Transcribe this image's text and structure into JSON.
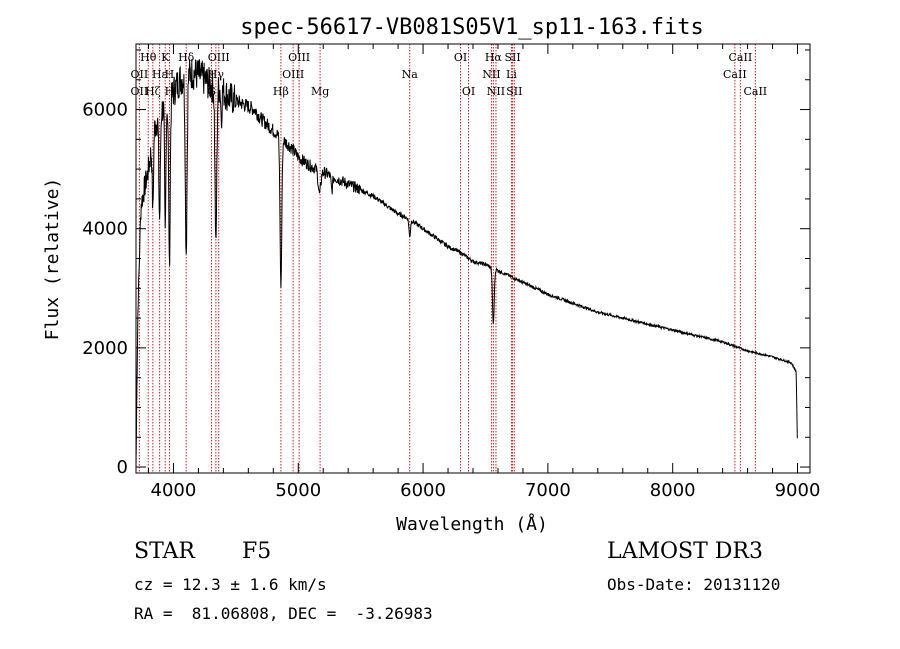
{
  "chart_data": {
    "type": "line",
    "title": "spec-56617-VB081S05V1_sp11-163.fits",
    "xlabel": "Wavelength (Å)",
    "ylabel": "Flux (relative)",
    "xlim": [
      3700,
      9100
    ],
    "ylim": [
      -100,
      7100
    ],
    "x_ticks": [
      4000,
      5000,
      6000,
      7000,
      8000,
      9000
    ],
    "x_tick_labels": [
      "4000",
      "5000",
      "6000",
      "7000",
      "8000",
      "9000"
    ],
    "y_ticks": [
      0,
      2000,
      4000,
      6000
    ],
    "y_tick_labels": [
      "0",
      "2000",
      "4000",
      "6000"
    ],
    "spectrum": {
      "continuum": [
        [
          3700,
          0
        ],
        [
          3715,
          2600
        ],
        [
          3740,
          4400
        ],
        [
          3800,
          5000
        ],
        [
          3850,
          5700
        ],
        [
          3900,
          6000
        ],
        [
          3950,
          6050
        ],
        [
          4000,
          6300
        ],
        [
          4050,
          6500
        ],
        [
          4100,
          6550
        ],
        [
          4150,
          6620
        ],
        [
          4200,
          6580
        ],
        [
          4250,
          6500
        ],
        [
          4300,
          6400
        ],
        [
          4350,
          6380
        ],
        [
          4400,
          6300
        ],
        [
          4450,
          6200
        ],
        [
          4500,
          6150
        ],
        [
          4550,
          6100
        ],
        [
          4600,
          6050
        ],
        [
          4650,
          6000
        ],
        [
          4700,
          5850
        ],
        [
          4750,
          5750
        ],
        [
          4800,
          5650
        ],
        [
          4850,
          5550
        ],
        [
          4900,
          5450
        ],
        [
          4950,
          5350
        ],
        [
          5000,
          5200
        ],
        [
          5100,
          5050
        ],
        [
          5200,
          4950
        ],
        [
          5300,
          4850
        ],
        [
          5400,
          4750
        ],
        [
          5500,
          4650
        ],
        [
          5600,
          4550
        ],
        [
          5700,
          4400
        ],
        [
          5800,
          4250
        ],
        [
          5900,
          4150
        ],
        [
          6000,
          4000
        ],
        [
          6100,
          3850
        ],
        [
          6200,
          3700
        ],
        [
          6300,
          3600
        ],
        [
          6400,
          3450
        ],
        [
          6500,
          3400
        ],
        [
          6600,
          3300
        ],
        [
          6700,
          3200
        ],
        [
          6800,
          3100
        ],
        [
          6900,
          3000
        ],
        [
          7000,
          2900
        ],
        [
          7200,
          2750
        ],
        [
          7400,
          2600
        ],
        [
          7600,
          2500
        ],
        [
          7800,
          2400
        ],
        [
          8000,
          2300
        ],
        [
          8200,
          2200
        ],
        [
          8400,
          2100
        ],
        [
          8600,
          1950
        ],
        [
          8800,
          1850
        ],
        [
          8950,
          1750
        ],
        [
          8990,
          1600
        ],
        [
          9000,
          200
        ]
      ],
      "absorption_lines": [
        [
          3835,
          0.22,
          5
        ],
        [
          3889,
          0.3,
          6
        ],
        [
          3934,
          0.35,
          5
        ],
        [
          3968,
          0.45,
          6
        ],
        [
          4102,
          0.45,
          7
        ],
        [
          4340,
          0.42,
          7
        ],
        [
          4384,
          0.08,
          4
        ],
        [
          4861,
          0.45,
          7
        ],
        [
          5170,
          0.08,
          10
        ],
        [
          5269,
          0.05,
          6
        ],
        [
          5893,
          0.07,
          6
        ],
        [
          6563,
          0.28,
          7
        ]
      ]
    },
    "line_ids": [
      {
        "label": "Hθ",
        "wavelength": 3798,
        "row": 1
      },
      {
        "label": "OII",
        "wavelength": 3727,
        "row": 2
      },
      {
        "label": "OII",
        "wavelength": 3727,
        "row": 3
      },
      {
        "label": "K",
        "wavelength": 3934,
        "row": 1
      },
      {
        "label": "Hε",
        "wavelength": 3889,
        "row": 2
      },
      {
        "label": "Hζ",
        "wavelength": 3835,
        "row": 3
      },
      {
        "label": "Hδ",
        "wavelength": 4102,
        "row": 1
      },
      {
        "label": "H",
        "wavelength": 3968,
        "row": 2
      },
      {
        "label": "H",
        "wavelength": 3968,
        "row": 3
      },
      {
        "label": "OIII",
        "wavelength": 4363,
        "row": 1
      },
      {
        "label": "Hγ",
        "wavelength": 4340,
        "row": 2
      },
      {
        "label": "G",
        "wavelength": 4305,
        "row": 3
      },
      {
        "label": "OIII",
        "wavelength": 5007,
        "row": 1
      },
      {
        "label": "OIII",
        "wavelength": 4959,
        "row": 2
      },
      {
        "label": "Hβ",
        "wavelength": 4861,
        "row": 3
      },
      {
        "label": "Mg",
        "wavelength": 5175,
        "row": 3
      },
      {
        "label": "Na",
        "wavelength": 5893,
        "row": 2
      },
      {
        "label": "OI",
        "wavelength": 6300,
        "row": 1
      },
      {
        "label": "OI",
        "wavelength": 6364,
        "row": 3
      },
      {
        "label": "Hα",
        "wavelength": 6563,
        "row": 1
      },
      {
        "label": "SII",
        "wavelength": 6717,
        "row": 1
      },
      {
        "label": "NII",
        "wavelength": 6548,
        "row": 2
      },
      {
        "label": "Li",
        "wavelength": 6708,
        "row": 2
      },
      {
        "label": "NII",
        "wavelength": 6584,
        "row": 3
      },
      {
        "label": "SII",
        "wavelength": 6731,
        "row": 3
      },
      {
        "label": "CaII",
        "wavelength": 8542,
        "row": 1
      },
      {
        "label": "CaII",
        "wavelength": 8498,
        "row": 2
      },
      {
        "label": "CaII",
        "wavelength": 8662,
        "row": 3
      }
    ]
  },
  "info": {
    "object_class": "STAR",
    "subclass": "F5",
    "cz": "cz = 12.3 ± 1.6 km/s",
    "coords": "RA =  81.06808, DEC =  -3.26983",
    "survey": "LAMOST DR3",
    "obs_date": "Obs-Date: 20131120"
  },
  "colors": {
    "spectrum": "#000000",
    "line_marker": "#cc2222",
    "axis": "#000000",
    "background": "#ffffff"
  }
}
